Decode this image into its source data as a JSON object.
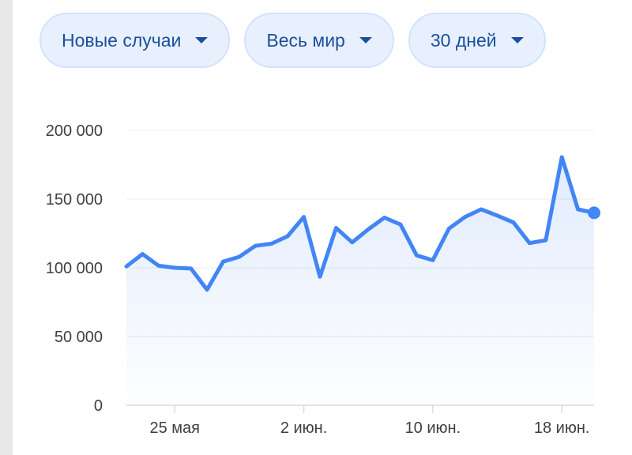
{
  "filters": [
    {
      "label": "Новые случаи"
    },
    {
      "label": "Весь мир"
    },
    {
      "label": "30 дней"
    }
  ],
  "colors": {
    "line": "#4285f4",
    "chip_bg": "#e8f0fe",
    "chip_text": "#1a4f9c",
    "grid": "#ececec"
  },
  "chart_data": {
    "type": "area",
    "title": "",
    "xlabel": "",
    "ylabel": "",
    "ylim": [
      0,
      200000
    ],
    "yticks": [
      0,
      50000,
      100000,
      150000,
      200000
    ],
    "ytick_labels": [
      "0",
      "50 000",
      "100 000",
      "150 000",
      "200 000"
    ],
    "xtick_labels": [
      {
        "label": "25 мая",
        "date": "2020-05-25"
      },
      {
        "label": "2 июн.",
        "date": "2020-06-02"
      },
      {
        "label": "10 июн.",
        "date": "2020-06-10"
      },
      {
        "label": "18 июн.",
        "date": "2020-06-18"
      }
    ],
    "grid": true,
    "legend": "none",
    "series": [
      {
        "x": [
          "2020-05-22",
          "2020-05-23",
          "2020-05-24",
          "2020-05-25",
          "2020-05-26",
          "2020-05-27",
          "2020-05-28",
          "2020-05-29",
          "2020-05-30",
          "2020-05-31",
          "2020-06-01",
          "2020-06-02",
          "2020-06-03",
          "2020-06-04",
          "2020-06-05",
          "2020-06-06",
          "2020-06-07",
          "2020-06-08",
          "2020-06-09",
          "2020-06-10",
          "2020-06-11",
          "2020-06-12",
          "2020-06-13",
          "2020-06-14",
          "2020-06-15",
          "2020-06-16",
          "2020-06-17",
          "2020-06-18",
          "2020-06-19",
          "2020-06-20"
        ],
        "values": [
          101000,
          110000,
          101500,
          100000,
          99500,
          84000,
          104500,
          108000,
          116000,
          117500,
          123000,
          137000,
          93500,
          129000,
          118500,
          128000,
          136500,
          131500,
          109000,
          105500,
          128500,
          137000,
          142500,
          138000,
          133000,
          118000,
          120000,
          180500,
          142500,
          140000
        ]
      }
    ]
  }
}
